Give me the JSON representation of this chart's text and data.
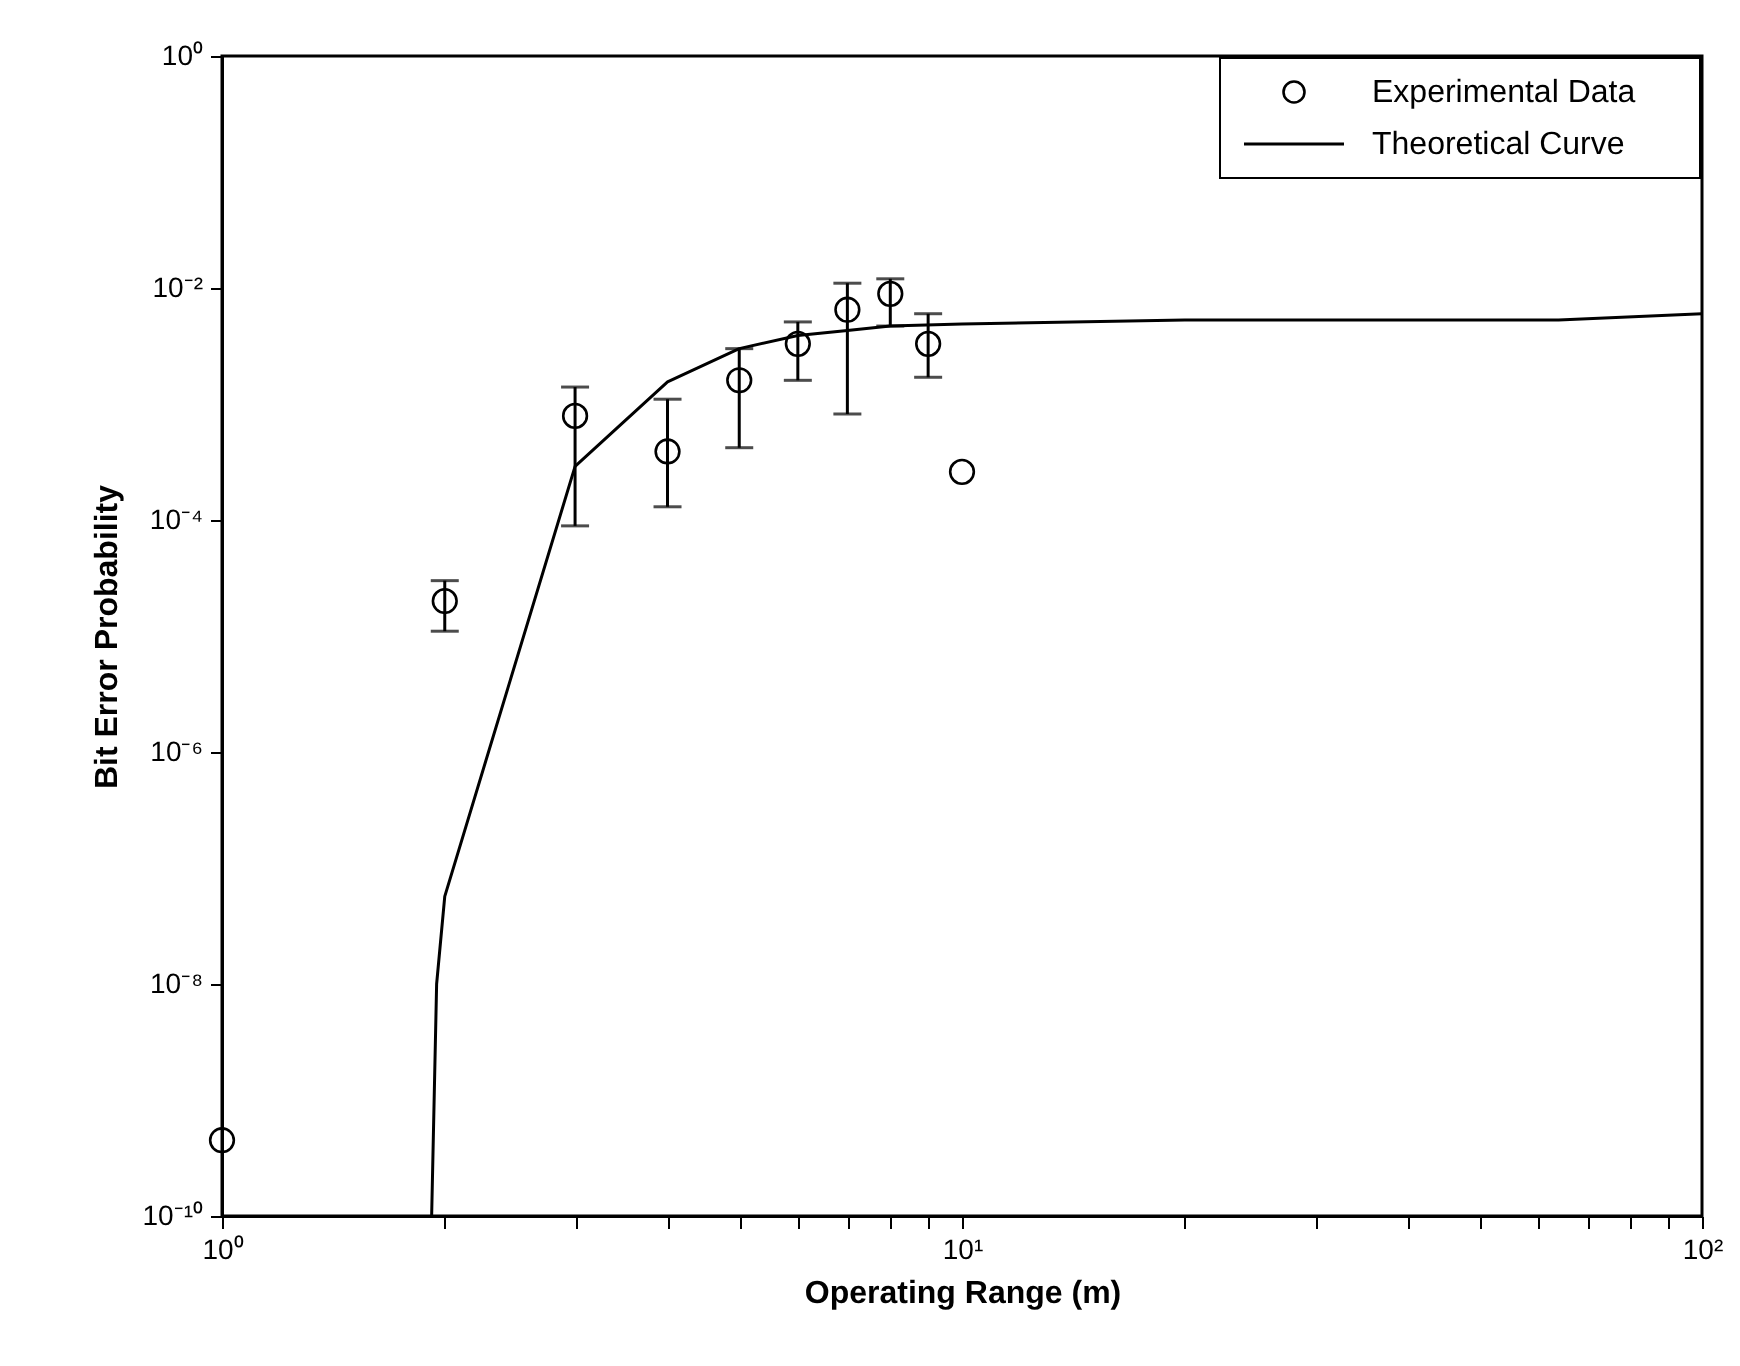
{
  "chart_data": {
    "type": "scatter",
    "xlabel": "Operating Range (m)",
    "ylabel": "Bit Error Probability",
    "log": "xy",
    "legend": "top right",
    "grid": false,
    "xlim": [
      1,
      100
    ],
    "ylim": [
      1e-10,
      1
    ],
    "xticks": [
      {
        "value": 1,
        "label": "10⁰"
      },
      {
        "value": 2,
        "label": null
      },
      {
        "value": 3,
        "label": null
      },
      {
        "value": 4,
        "label": null
      },
      {
        "value": 5,
        "label": null
      },
      {
        "value": 6,
        "label": null
      },
      {
        "value": 7,
        "label": null
      },
      {
        "value": 8,
        "label": null
      },
      {
        "value": 9,
        "label": null
      },
      {
        "value": 10,
        "label": "10¹"
      },
      {
        "value": 20,
        "label": null
      },
      {
        "value": 30,
        "label": null
      },
      {
        "value": 40,
        "label": null
      },
      {
        "value": 50,
        "label": null
      },
      {
        "value": 60,
        "label": null
      },
      {
        "value": 70,
        "label": null
      },
      {
        "value": 80,
        "label": null
      },
      {
        "value": 90,
        "label": null
      },
      {
        "value": 100,
        "label": "10²"
      }
    ],
    "yticks": [
      {
        "value": 1e-10,
        "label": "10⁻¹⁰"
      },
      {
        "value": 1e-08,
        "label": "10⁻⁸"
      },
      {
        "value": 1e-06,
        "label": "10⁻⁶"
      },
      {
        "value": 0.0001,
        "label": "10⁻⁴"
      },
      {
        "value": 0.01,
        "label": "10⁻²"
      },
      {
        "value": 1,
        "label": "10⁰"
      }
    ],
    "series": [
      {
        "name": "Experimental Data",
        "type": "scatter",
        "marker": "circle",
        "color": "#000000",
        "x": [
          1,
          2,
          3,
          4,
          5,
          6,
          7,
          8,
          9,
          10
        ],
        "values": [
          4.5e-10,
          2e-05,
          0.00079,
          0.00039,
          0.0016,
          0.0033,
          0.0065,
          0.0089,
          0.0033,
          0.00026
        ],
        "errors": [
          null,
          [
            1.1e-05,
            3e-05
          ],
          [
            8.9e-05,
            0.0014
          ],
          [
            0.00013,
            0.0011
          ],
          [
            0.00042,
            0.003
          ],
          [
            0.0016,
            0.0051
          ],
          [
            0.00082,
            0.011
          ],
          [
            0.0047,
            0.012
          ],
          [
            0.0017,
            0.006
          ],
          null
        ]
      },
      {
        "name": "Theoretical Curve",
        "type": "line",
        "line_style": "solid",
        "color": "#000000",
        "x": [
          1.92,
          1.95,
          2,
          3,
          4,
          5,
          6,
          7,
          8,
          10,
          20,
          64,
          100
        ],
        "values": [
          1e-10,
          1e-08,
          5.7e-08,
          0.00029,
          0.00155,
          0.003,
          0.0039,
          0.0043,
          0.0047,
          0.0049,
          0.0053,
          0.0053,
          0.006
        ]
      }
    ]
  }
}
